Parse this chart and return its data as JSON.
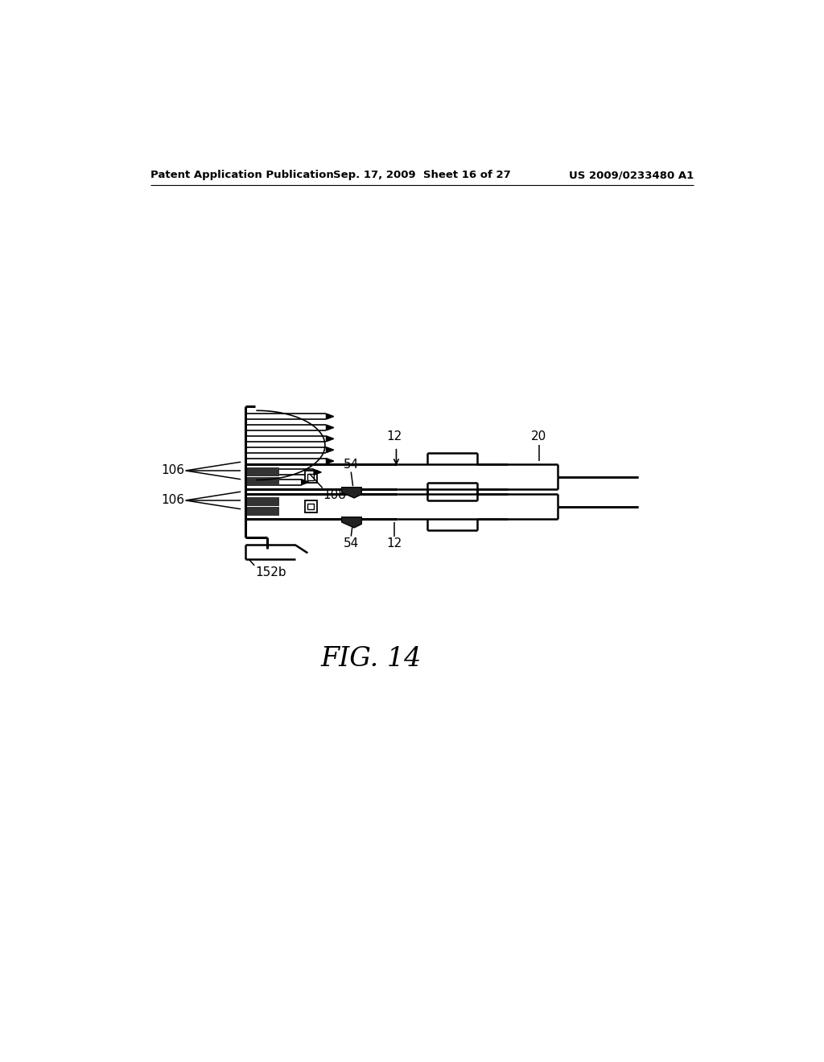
{
  "bg_color": "#ffffff",
  "header_left": "Patent Application Publication",
  "header_center": "Sep. 17, 2009  Sheet 16 of 27",
  "header_right": "US 2009/0233480 A1",
  "fig_label": "FIG. 14",
  "labels": {
    "106_top": "106",
    "106_bot": "106",
    "108": "108",
    "54_top": "54",
    "54_bot": "54",
    "12_top": "12",
    "12_bot": "12",
    "20": "20",
    "152b": "152b"
  }
}
